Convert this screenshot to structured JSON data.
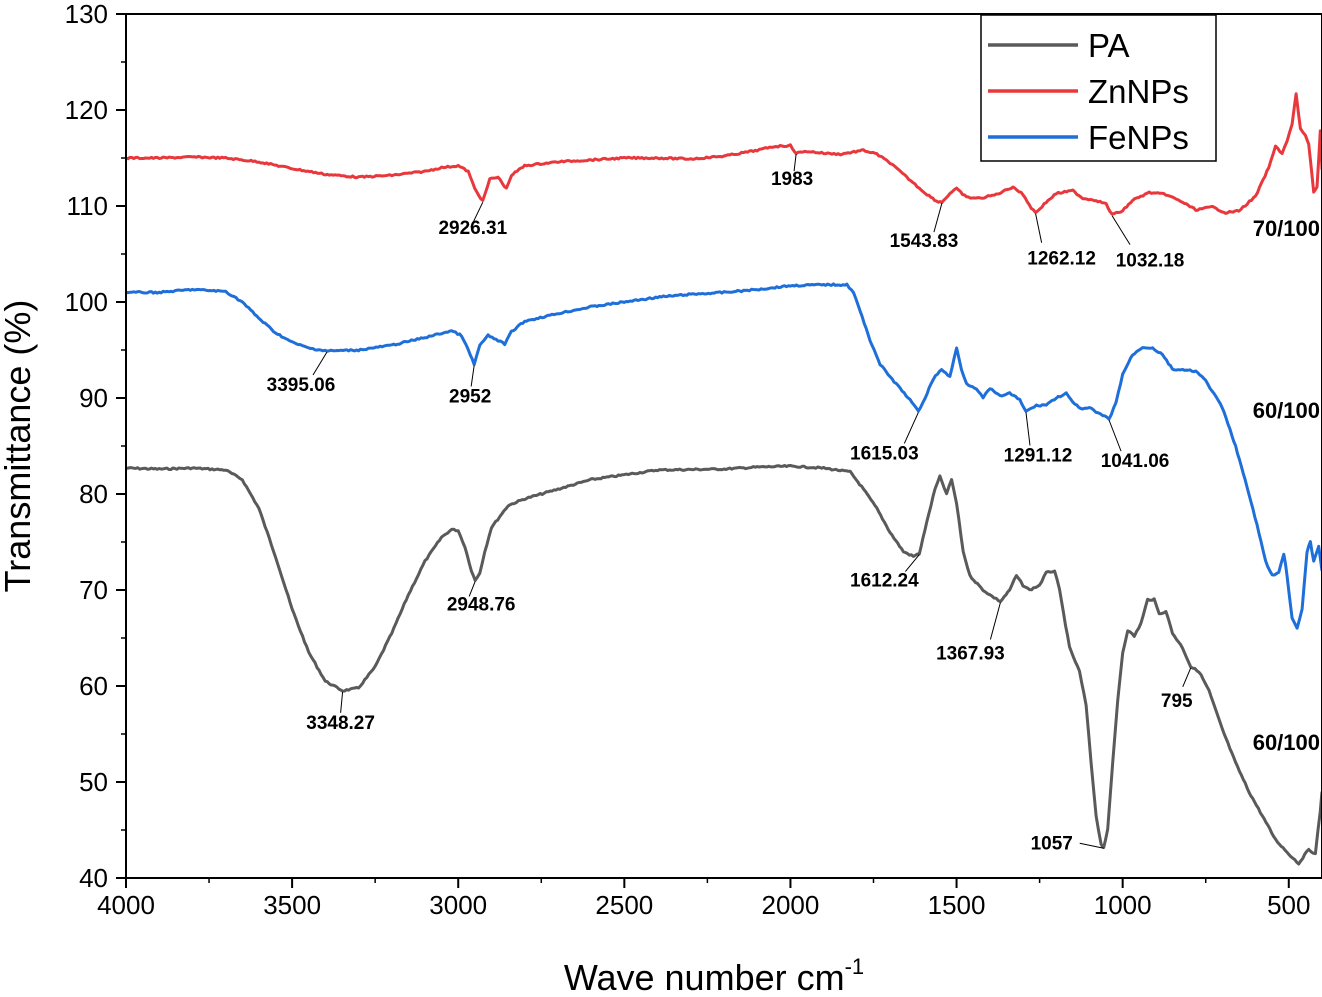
{
  "chart_data": {
    "type": "line",
    "xlabel": "Wave number cm",
    "xlabel_superscript": "-1",
    "ylabel": "Transmittance (%)",
    "xlim": [
      4000,
      400
    ],
    "ylim": [
      40,
      130
    ],
    "x_reversed": true,
    "x_ticks": [
      4000,
      3500,
      3000,
      2500,
      2000,
      1500,
      1000,
      500
    ],
    "y_ticks": [
      40,
      50,
      60,
      70,
      80,
      90,
      100,
      110,
      120,
      130
    ],
    "grid": false,
    "legend_position": "top-right",
    "series": [
      {
        "name": "PA",
        "color": "#5a5a5a",
        "scale_label": "60/100",
        "points": [
          [
            4000,
            82.7
          ],
          [
            3900,
            82.6
          ],
          [
            3800,
            82.7
          ],
          [
            3700,
            82.5
          ],
          [
            3650,
            81.5
          ],
          [
            3600,
            78.5
          ],
          [
            3550,
            73.5
          ],
          [
            3500,
            68.0
          ],
          [
            3450,
            63.5
          ],
          [
            3400,
            60.5
          ],
          [
            3348,
            59.5
          ],
          [
            3300,
            59.8
          ],
          [
            3250,
            62.0
          ],
          [
            3200,
            65.5
          ],
          [
            3150,
            69.5
          ],
          [
            3100,
            73.0
          ],
          [
            3050,
            75.5
          ],
          [
            3020,
            76.3
          ],
          [
            3000,
            76.2
          ],
          [
            2980,
            74.5
          ],
          [
            2960,
            72.0
          ],
          [
            2949,
            71.0
          ],
          [
            2935,
            71.8
          ],
          [
            2920,
            74.0
          ],
          [
            2900,
            76.5
          ],
          [
            2850,
            78.8
          ],
          [
            2800,
            79.5
          ],
          [
            2700,
            80.5
          ],
          [
            2600,
            81.5
          ],
          [
            2500,
            82.0
          ],
          [
            2400,
            82.5
          ],
          [
            2200,
            82.6
          ],
          [
            2100,
            82.8
          ],
          [
            2000,
            82.9
          ],
          [
            1900,
            82.7
          ],
          [
            1820,
            82.3
          ],
          [
            1780,
            80.5
          ],
          [
            1740,
            78.5
          ],
          [
            1700,
            76.0
          ],
          [
            1660,
            74.0
          ],
          [
            1630,
            73.5
          ],
          [
            1612,
            73.8
          ],
          [
            1590,
            77.0
          ],
          [
            1565,
            80.5
          ],
          [
            1550,
            81.8
          ],
          [
            1530,
            80.0
          ],
          [
            1515,
            81.5
          ],
          [
            1500,
            79.0
          ],
          [
            1480,
            74.0
          ],
          [
            1460,
            71.5
          ],
          [
            1420,
            70.0
          ],
          [
            1400,
            69.5
          ],
          [
            1368,
            68.8
          ],
          [
            1340,
            70.0
          ],
          [
            1320,
            71.5
          ],
          [
            1300,
            70.5
          ],
          [
            1280,
            70.0
          ],
          [
            1250,
            70.5
          ],
          [
            1230,
            71.8
          ],
          [
            1205,
            72.0
          ],
          [
            1190,
            70.0
          ],
          [
            1160,
            64.0
          ],
          [
            1130,
            61.5
          ],
          [
            1110,
            58.0
          ],
          [
            1095,
            52.0
          ],
          [
            1080,
            46.5
          ],
          [
            1065,
            43.5
          ],
          [
            1057,
            43.2
          ],
          [
            1045,
            45.0
          ],
          [
            1030,
            52.0
          ],
          [
            1015,
            58.5
          ],
          [
            1000,
            63.5
          ],
          [
            985,
            65.8
          ],
          [
            965,
            65.2
          ],
          [
            945,
            66.5
          ],
          [
            925,
            69.0
          ],
          [
            905,
            69.0
          ],
          [
            890,
            67.5
          ],
          [
            870,
            67.8
          ],
          [
            850,
            65.5
          ],
          [
            820,
            64.0
          ],
          [
            795,
            62.0
          ],
          [
            770,
            61.5
          ],
          [
            740,
            59.5
          ],
          [
            700,
            55.5
          ],
          [
            660,
            52.0
          ],
          [
            620,
            49.0
          ],
          [
            580,
            46.5
          ],
          [
            540,
            44.0
          ],
          [
            500,
            42.5
          ],
          [
            470,
            41.5
          ],
          [
            440,
            43.0
          ],
          [
            420,
            42.5
          ],
          [
            405,
            47.0
          ],
          [
            400,
            49.0
          ]
        ]
      },
      {
        "name": "ZnNPs",
        "color": "#e8383c",
        "scale_label": "70/100",
        "points": [
          [
            4000,
            115.0
          ],
          [
            3900,
            115.0
          ],
          [
            3800,
            115.1
          ],
          [
            3700,
            115.0
          ],
          [
            3600,
            114.6
          ],
          [
            3500,
            113.9
          ],
          [
            3400,
            113.3
          ],
          [
            3300,
            113.0
          ],
          [
            3200,
            113.2
          ],
          [
            3100,
            113.6
          ],
          [
            3050,
            114.0
          ],
          [
            3000,
            114.2
          ],
          [
            2970,
            113.6
          ],
          [
            2950,
            111.8
          ],
          [
            2926,
            110.5
          ],
          [
            2905,
            112.8
          ],
          [
            2880,
            113.0
          ],
          [
            2855,
            111.8
          ],
          [
            2840,
            113.2
          ],
          [
            2800,
            114.2
          ],
          [
            2700,
            114.6
          ],
          [
            2600,
            114.8
          ],
          [
            2500,
            115.0
          ],
          [
            2400,
            115.0
          ],
          [
            2300,
            114.9
          ],
          [
            2200,
            115.2
          ],
          [
            2100,
            115.8
          ],
          [
            2050,
            116.2
          ],
          [
            2000,
            116.3
          ],
          [
            1983,
            115.5
          ],
          [
            1950,
            115.7
          ],
          [
            1900,
            115.5
          ],
          [
            1850,
            115.4
          ],
          [
            1780,
            115.8
          ],
          [
            1740,
            115.4
          ],
          [
            1700,
            114.5
          ],
          [
            1650,
            113.0
          ],
          [
            1600,
            111.5
          ],
          [
            1560,
            110.5
          ],
          [
            1544,
            110.4
          ],
          [
            1520,
            111.3
          ],
          [
            1500,
            111.8
          ],
          [
            1470,
            110.9
          ],
          [
            1430,
            110.8
          ],
          [
            1380,
            111.2
          ],
          [
            1330,
            112.0
          ],
          [
            1300,
            111.2
          ],
          [
            1275,
            109.8
          ],
          [
            1262,
            109.3
          ],
          [
            1230,
            110.4
          ],
          [
            1200,
            111.3
          ],
          [
            1150,
            111.6
          ],
          [
            1120,
            110.8
          ],
          [
            1080,
            110.6
          ],
          [
            1050,
            110.2
          ],
          [
            1032,
            109.1
          ],
          [
            1000,
            109.5
          ],
          [
            970,
            110.6
          ],
          [
            920,
            111.4
          ],
          [
            870,
            111.2
          ],
          [
            820,
            110.4
          ],
          [
            780,
            109.6
          ],
          [
            730,
            109.9
          ],
          [
            690,
            109.3
          ],
          [
            650,
            109.5
          ],
          [
            600,
            111.0
          ],
          [
            560,
            114.0
          ],
          [
            540,
            116.2
          ],
          [
            520,
            115.5
          ],
          [
            505,
            116.8
          ],
          [
            490,
            118.5
          ],
          [
            478,
            121.7
          ],
          [
            465,
            118.0
          ],
          [
            450,
            117.4
          ],
          [
            440,
            116.4
          ],
          [
            425,
            111.5
          ],
          [
            415,
            112.0
          ],
          [
            405,
            117.8
          ],
          [
            400,
            113.8
          ]
        ]
      },
      {
        "name": "FeNPs",
        "color": "#1e6fd9",
        "scale_label": "60/100",
        "points": [
          [
            4000,
            101.0
          ],
          [
            3900,
            101.0
          ],
          [
            3800,
            101.3
          ],
          [
            3700,
            101.1
          ],
          [
            3650,
            100.0
          ],
          [
            3600,
            98.3
          ],
          [
            3550,
            96.8
          ],
          [
            3500,
            95.8
          ],
          [
            3450,
            95.2
          ],
          [
            3395,
            94.9
          ],
          [
            3300,
            95.0
          ],
          [
            3200,
            95.5
          ],
          [
            3100,
            96.3
          ],
          [
            3020,
            97.0
          ],
          [
            2990,
            96.5
          ],
          [
            2970,
            95.0
          ],
          [
            2952,
            93.5
          ],
          [
            2935,
            95.5
          ],
          [
            2910,
            96.5
          ],
          [
            2880,
            96.0
          ],
          [
            2860,
            95.6
          ],
          [
            2840,
            96.9
          ],
          [
            2800,
            98.0
          ],
          [
            2700,
            98.8
          ],
          [
            2600,
            99.5
          ],
          [
            2500,
            100.0
          ],
          [
            2400,
            100.5
          ],
          [
            2300,
            100.8
          ],
          [
            2200,
            101.0
          ],
          [
            2100,
            101.3
          ],
          [
            2000,
            101.7
          ],
          [
            1900,
            101.8
          ],
          [
            1830,
            101.8
          ],
          [
            1810,
            101.0
          ],
          [
            1790,
            99.0
          ],
          [
            1760,
            96.0
          ],
          [
            1730,
            93.5
          ],
          [
            1700,
            92.2
          ],
          [
            1670,
            91.0
          ],
          [
            1640,
            89.8
          ],
          [
            1615,
            88.6
          ],
          [
            1595,
            90.0
          ],
          [
            1570,
            92.0
          ],
          [
            1545,
            93.0
          ],
          [
            1520,
            92.2
          ],
          [
            1500,
            95.2
          ],
          [
            1485,
            93.0
          ],
          [
            1470,
            91.5
          ],
          [
            1440,
            91.0
          ],
          [
            1420,
            90.0
          ],
          [
            1400,
            91.0
          ],
          [
            1370,
            90.2
          ],
          [
            1340,
            90.5
          ],
          [
            1310,
            89.8
          ],
          [
            1291,
            88.6
          ],
          [
            1260,
            89.2
          ],
          [
            1230,
            89.3
          ],
          [
            1200,
            90.0
          ],
          [
            1170,
            90.5
          ],
          [
            1150,
            89.5
          ],
          [
            1120,
            88.8
          ],
          [
            1100,
            89.0
          ],
          [
            1080,
            88.5
          ],
          [
            1060,
            88.2
          ],
          [
            1041,
            87.8
          ],
          [
            1020,
            89.5
          ],
          [
            1000,
            92.5
          ],
          [
            970,
            94.5
          ],
          [
            940,
            95.3
          ],
          [
            910,
            95.2
          ],
          [
            880,
            94.5
          ],
          [
            850,
            93.0
          ],
          [
            820,
            92.9
          ],
          [
            780,
            92.8
          ],
          [
            750,
            91.8
          ],
          [
            700,
            89.0
          ],
          [
            660,
            85.0
          ],
          [
            620,
            80.0
          ],
          [
            590,
            76.0
          ],
          [
            570,
            73.0
          ],
          [
            550,
            71.5
          ],
          [
            530,
            71.8
          ],
          [
            515,
            73.8
          ],
          [
            505,
            71.5
          ],
          [
            490,
            67.0
          ],
          [
            475,
            66.0
          ],
          [
            460,
            68.0
          ],
          [
            445,
            74.0
          ],
          [
            435,
            75.0
          ],
          [
            425,
            73.0
          ],
          [
            410,
            74.5
          ],
          [
            400,
            72.0
          ]
        ]
      }
    ],
    "annotations": [
      {
        "text": "2926.31",
        "x": 2926,
        "y": 110.5,
        "series": "ZnNPs"
      },
      {
        "text": "1983",
        "x": 1983,
        "y": 115.5,
        "series": "ZnNPs"
      },
      {
        "text": "1543.83",
        "x": 1544,
        "y": 110.4,
        "series": "ZnNPs"
      },
      {
        "text": "1262.12",
        "x": 1262,
        "y": 109.3,
        "series": "ZnNPs"
      },
      {
        "text": "1032.18",
        "x": 1032,
        "y": 109.1,
        "series": "ZnNPs"
      },
      {
        "text": "3395.06",
        "x": 3395,
        "y": 94.9,
        "series": "FeNPs"
      },
      {
        "text": "2952",
        "x": 2952,
        "y": 93.5,
        "series": "FeNPs"
      },
      {
        "text": "1615.03",
        "x": 1615,
        "y": 88.6,
        "series": "FeNPs"
      },
      {
        "text": "1291.12",
        "x": 1291,
        "y": 88.6,
        "series": "FeNPs"
      },
      {
        "text": "1041.06",
        "x": 1041,
        "y": 87.8,
        "series": "FeNPs"
      },
      {
        "text": "3348.27",
        "x": 3348,
        "y": 59.5,
        "series": "PA"
      },
      {
        "text": "2948.76",
        "x": 2949,
        "y": 71.0,
        "series": "PA"
      },
      {
        "text": "1612.24",
        "x": 1612,
        "y": 73.8,
        "series": "PA"
      },
      {
        "text": "1367.93",
        "x": 1368,
        "y": 68.8,
        "series": "PA"
      },
      {
        "text": "795",
        "x": 795,
        "y": 62.0,
        "series": "PA"
      },
      {
        "text": "1057",
        "x": 1057,
        "y": 43.2,
        "series": "PA"
      }
    ]
  }
}
